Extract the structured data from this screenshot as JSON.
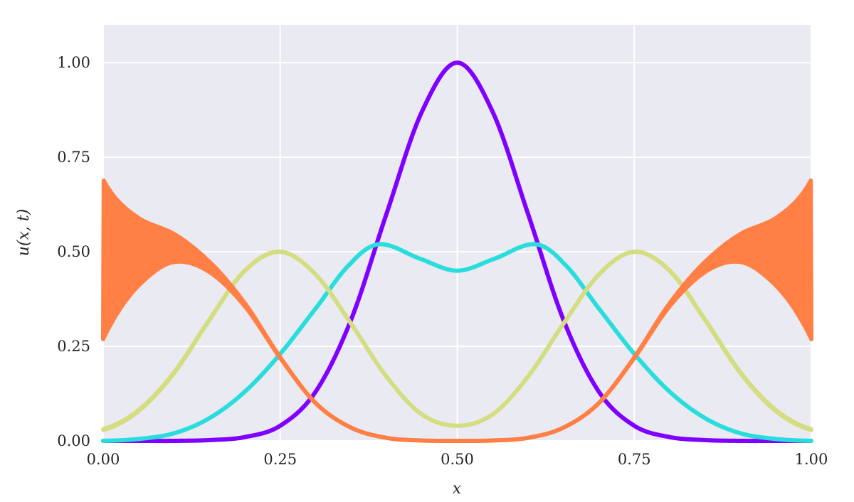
{
  "chart_data": {
    "type": "line",
    "title": "",
    "xlabel": "x",
    "ylabel": "u(x, t)",
    "xlim": [
      0,
      1
    ],
    "ylim": [
      0,
      1.1
    ],
    "grid": true,
    "legend": "none",
    "background_color": "#eaeaf2",
    "x_ticks": [
      "0.00",
      "0.25",
      "0.50",
      "0.75",
      "1.00"
    ],
    "y_ticks": [
      "0.00",
      "0.25",
      "0.50",
      "0.75",
      "1.00"
    ],
    "series": [
      {
        "color": "#8000ff",
        "x": [
          0.0,
          0.05,
          0.1,
          0.15,
          0.2,
          0.25,
          0.3,
          0.35,
          0.4,
          0.45,
          0.5,
          0.55,
          0.6,
          0.65,
          0.7,
          0.75,
          0.8,
          0.85,
          0.9,
          0.95,
          1.0
        ],
        "y": [
          0.0,
          0.0,
          0.0,
          0.002,
          0.01,
          0.04,
          0.13,
          0.32,
          0.6,
          0.87,
          1.0,
          0.87,
          0.6,
          0.32,
          0.13,
          0.04,
          0.01,
          0.002,
          0.0,
          0.0,
          0.0
        ]
      },
      {
        "color": "#2adddd",
        "x": [
          0.0,
          0.05,
          0.1,
          0.15,
          0.2,
          0.25,
          0.3,
          0.35,
          0.39,
          0.45,
          0.5,
          0.55,
          0.61,
          0.65,
          0.7,
          0.75,
          0.8,
          0.85,
          0.9,
          0.95,
          1.0
        ],
        "y": [
          0.0,
          0.005,
          0.02,
          0.06,
          0.13,
          0.23,
          0.35,
          0.47,
          0.52,
          0.48,
          0.45,
          0.48,
          0.52,
          0.47,
          0.35,
          0.23,
          0.13,
          0.06,
          0.02,
          0.005,
          0.0
        ],
        "edge_value": 0.0
      },
      {
        "color": "#d4dd80",
        "x": [
          0.0,
          0.05,
          0.1,
          0.15,
          0.2,
          0.25,
          0.3,
          0.35,
          0.4,
          0.45,
          0.5,
          0.55,
          0.6,
          0.65,
          0.7,
          0.75,
          0.8,
          0.85,
          0.9,
          0.95,
          1.0
        ],
        "y": [
          0.03,
          0.08,
          0.18,
          0.32,
          0.45,
          0.5,
          0.44,
          0.31,
          0.17,
          0.07,
          0.04,
          0.07,
          0.17,
          0.31,
          0.44,
          0.5,
          0.45,
          0.32,
          0.18,
          0.08,
          0.03
        ],
        "oscillation": 0.02
      },
      {
        "color": "#ff7f45",
        "x": [
          0.0,
          0.05,
          0.1,
          0.15,
          0.2,
          0.25,
          0.3,
          0.35,
          0.4,
          0.45,
          0.5,
          0.55,
          0.6,
          0.65,
          0.7,
          0.75,
          0.8,
          0.85,
          0.9,
          0.95,
          1.0
        ],
        "y": [
          0.48,
          0.5,
          0.51,
          0.46,
          0.36,
          0.22,
          0.1,
          0.035,
          0.008,
          0.001,
          0.0,
          0.001,
          0.008,
          0.035,
          0.1,
          0.22,
          0.36,
          0.46,
          0.51,
          0.5,
          0.48
        ],
        "oscillation": 0.2
      }
    ]
  }
}
